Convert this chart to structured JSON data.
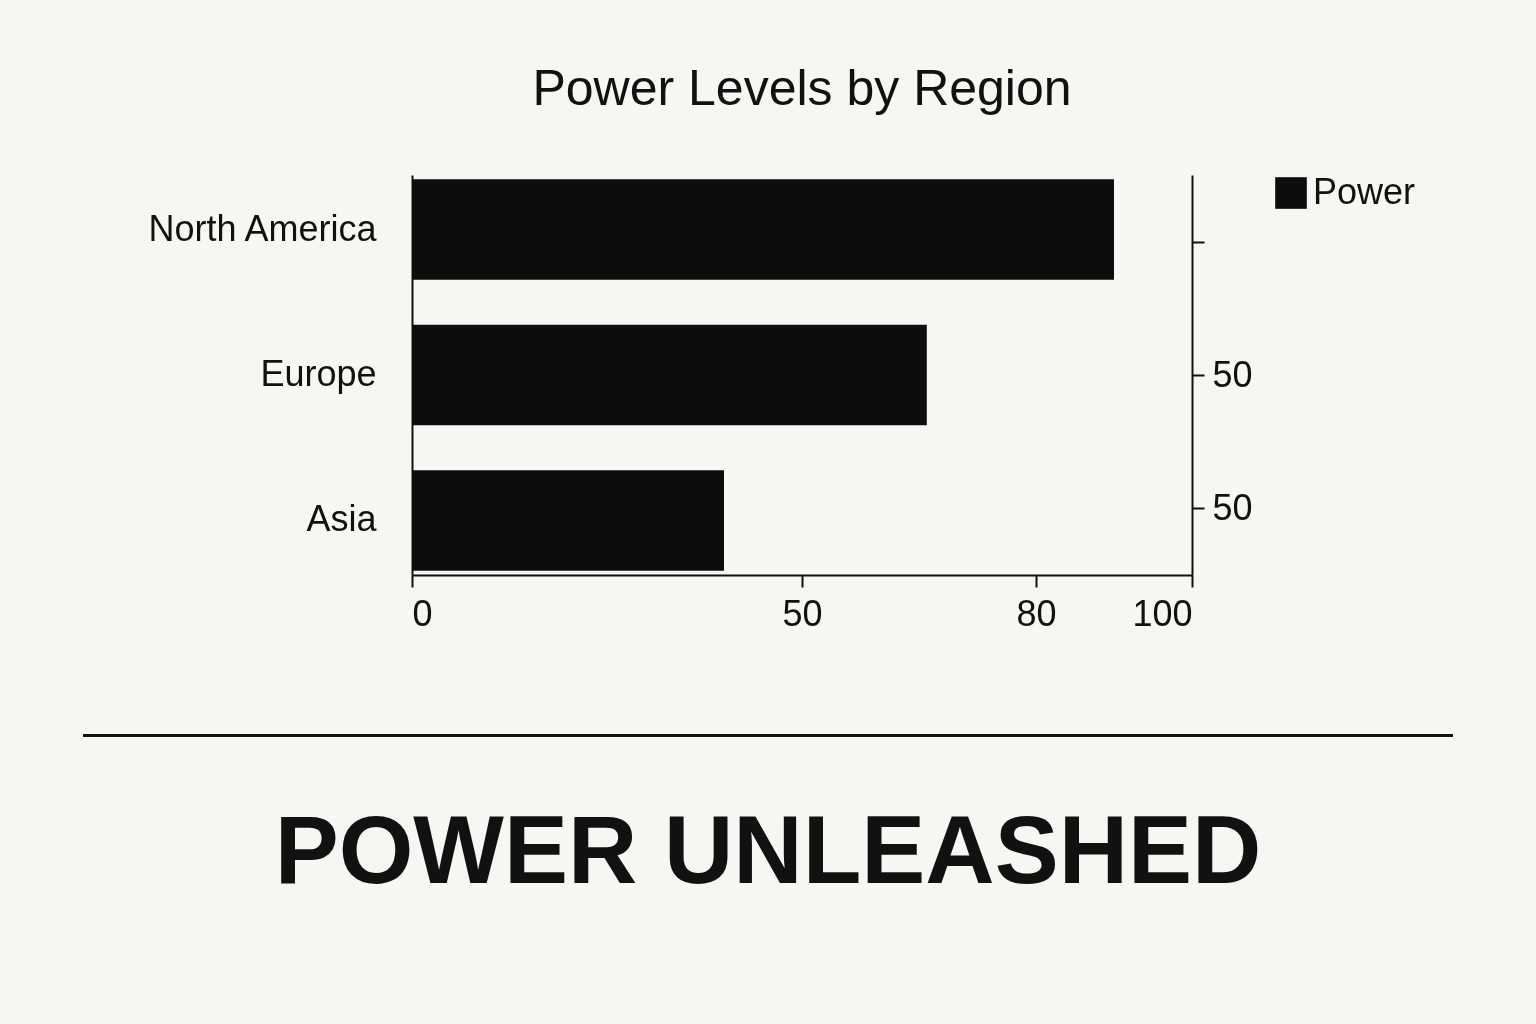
{
  "chart_data": {
    "type": "bar",
    "orientation": "horizontal",
    "title": "Power Levels by Region",
    "categories": [
      "North America",
      "Europe",
      "Asia"
    ],
    "y2_categories": [
      null,
      "50",
      "50"
    ],
    "series": [
      {
        "name": "Power",
        "color": "#0d0d0d",
        "values": [
          90,
          66,
          40
        ]
      }
    ],
    "xlim": [
      0,
      100
    ],
    "xticks": [
      0,
      50,
      80,
      100
    ],
    "grid": false,
    "legend": "top right",
    "annotations": [
      "POWER UNLEASHED"
    ]
  }
}
